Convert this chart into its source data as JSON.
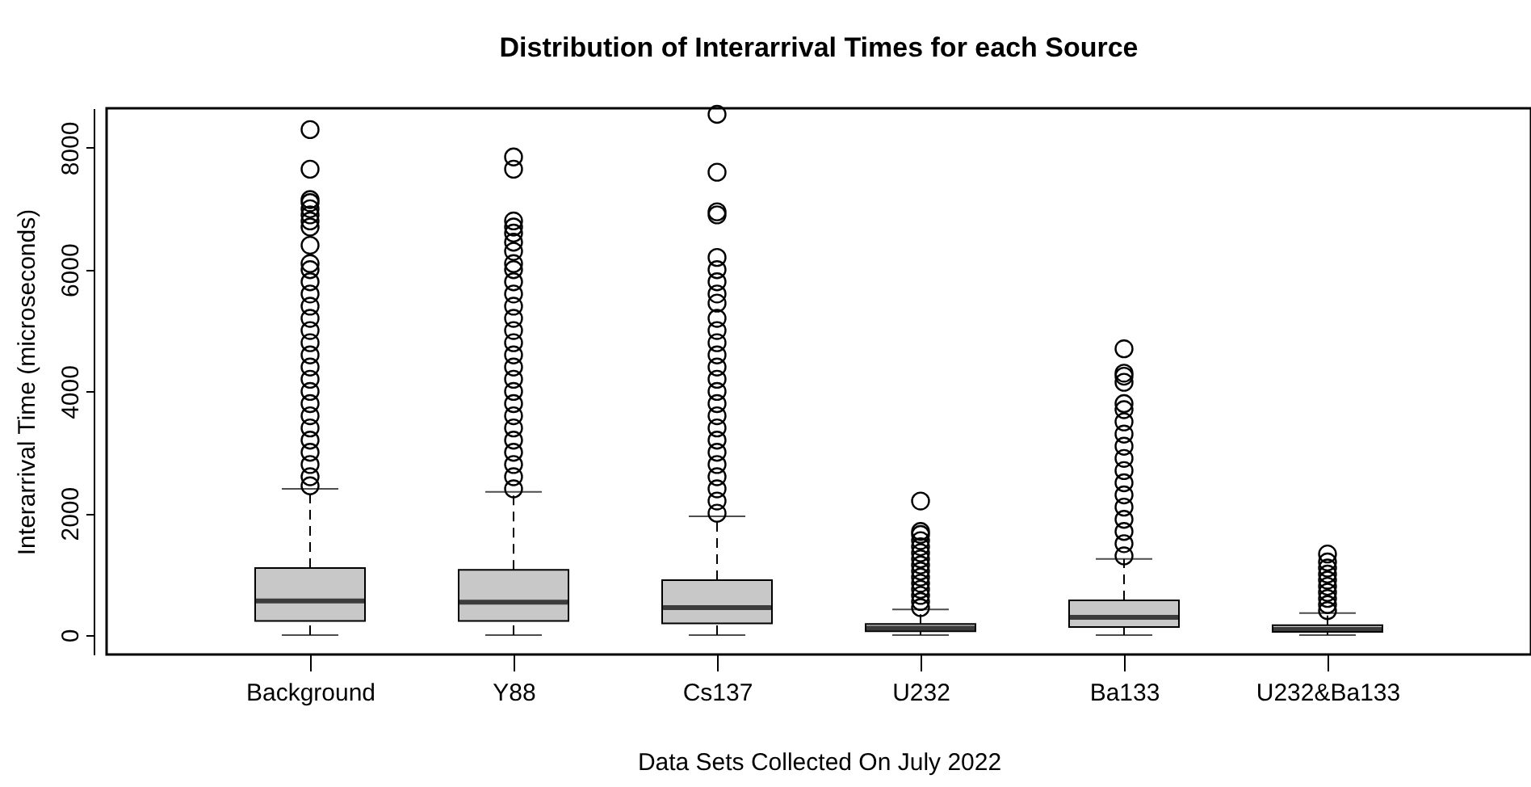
{
  "chart_data": {
    "type": "box",
    "title": "Distribution of Interarrival Times for each Source",
    "xlabel": "Data Sets Collected On July 2022",
    "ylabel": "Interarrival Time (microseconds)",
    "categories": [
      "Background",
      "Y88",
      "Cs137",
      "U232",
      "Ba133",
      "U232&Ba133"
    ],
    "color": "#c8c8c8",
    "marker": "circle",
    "line_style": "dashed",
    "ylim": [
      -320,
      8650
    ],
    "yticks": [
      0,
      2000,
      4000,
      6000,
      8000
    ],
    "boxes": [
      {
        "low": 0,
        "q1": 230,
        "median": 560,
        "q3": 1100,
        "high": 2400,
        "outliers": [
          2450,
          2600,
          2800,
          3000,
          3200,
          3400,
          3600,
          3800,
          4000,
          4200,
          4400,
          4600,
          4800,
          5000,
          5200,
          5400,
          5600,
          5800,
          6000,
          6100,
          6400,
          6700,
          6800,
          6900,
          7000,
          7100,
          7150,
          7650,
          8300
        ]
      },
      {
        "low": 0,
        "q1": 230,
        "median": 540,
        "q3": 1070,
        "high": 2350,
        "outliers": [
          2400,
          2600,
          2800,
          3000,
          3200,
          3400,
          3600,
          3800,
          4000,
          4200,
          4400,
          4600,
          4800,
          5000,
          5200,
          5400,
          5600,
          5800,
          6000,
          6100,
          6300,
          6450,
          6600,
          6700,
          6800,
          7650,
          7850
        ]
      },
      {
        "low": 0,
        "q1": 190,
        "median": 450,
        "q3": 900,
        "high": 1950,
        "outliers": [
          2000,
          2200,
          2400,
          2600,
          2800,
          3000,
          3200,
          3400,
          3600,
          3800,
          4000,
          4200,
          4400,
          4600,
          4800,
          5000,
          5200,
          5450,
          5600,
          5800,
          6000,
          6200,
          6900,
          6950,
          7600,
          8550
        ]
      },
      {
        "low": 0,
        "q1": 60,
        "median": 110,
        "q3": 180,
        "high": 420,
        "outliers": [
          450,
          550,
          650,
          750,
          850,
          950,
          1050,
          1150,
          1250,
          1350,
          1450,
          1550,
          1650,
          1700,
          2200
        ]
      },
      {
        "low": 0,
        "q1": 130,
        "median": 290,
        "q3": 570,
        "high": 1250,
        "outliers": [
          1300,
          1500,
          1700,
          1900,
          2100,
          2300,
          2500,
          2700,
          2900,
          3100,
          3300,
          3500,
          3700,
          3800,
          4150,
          4250,
          4300,
          4700
        ]
      },
      {
        "low": 0,
        "q1": 50,
        "median": 90,
        "q3": 160,
        "high": 360,
        "outliers": [
          400,
          500,
          600,
          700,
          800,
          900,
          1000,
          1100,
          1200,
          1330
        ]
      }
    ]
  }
}
